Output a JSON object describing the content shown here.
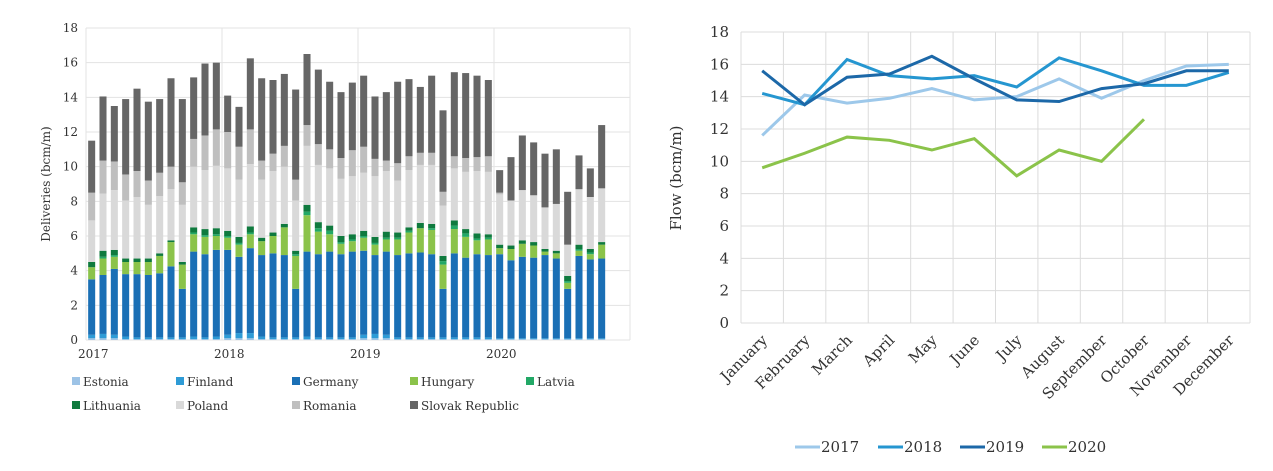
{
  "chart_data": [
    {
      "type": "bar",
      "stacked": true,
      "title": "",
      "xlabel": "",
      "ylabel": "Deliveries (bcm/m)",
      "ylim": [
        0,
        18
      ],
      "yticks": [
        0,
        2,
        4,
        6,
        8,
        10,
        12,
        14,
        16,
        18
      ],
      "xtick_labels": [
        "2017",
        "2018",
        "2019",
        "2020"
      ],
      "grid": true,
      "legend_position": "bottom",
      "categories": [
        "2017-01",
        "2017-02",
        "2017-03",
        "2017-04",
        "2017-05",
        "2017-06",
        "2017-07",
        "2017-08",
        "2017-09",
        "2017-10",
        "2017-11",
        "2017-12",
        "2018-01",
        "2018-02",
        "2018-03",
        "2018-04",
        "2018-05",
        "2018-06",
        "2018-07",
        "2018-08",
        "2018-09",
        "2018-10",
        "2018-11",
        "2018-12",
        "2019-01",
        "2019-02",
        "2019-03",
        "2019-04",
        "2019-05",
        "2019-06",
        "2019-07",
        "2019-08",
        "2019-09",
        "2019-10",
        "2019-11",
        "2019-12",
        "2020-01",
        "2020-02",
        "2020-03",
        "2020-04",
        "2020-05",
        "2020-06",
        "2020-07",
        "2020-08",
        "2020-09",
        "2020-10"
      ],
      "series": [
        {
          "name": "Estonia",
          "color": "#9dc3e6",
          "values": [
            0.1,
            0.1,
            0.1,
            0.05,
            0.05,
            0.05,
            0.05,
            0.05,
            0.05,
            0.05,
            0.05,
            0.05,
            0.1,
            0.1,
            0.1,
            0.05,
            0.05,
            0.05,
            0.05,
            0.05,
            0.05,
            0.05,
            0.05,
            0.05,
            0.1,
            0.1,
            0.1,
            0.05,
            0.05,
            0.05,
            0.05,
            0.05,
            0.05,
            0.05,
            0.05,
            0.05,
            0.05,
            0.05,
            0.05,
            0.05,
            0.05,
            0.05,
            0.05,
            0.05,
            0.05,
            0.05
          ]
        },
        {
          "name": "Finland",
          "color": "#2e9bd6",
          "values": [
            0.2,
            0.25,
            0.2,
            0.15,
            0.1,
            0.1,
            0.1,
            0.1,
            0.1,
            0.15,
            0.1,
            0.15,
            0.2,
            0.3,
            0.3,
            0.15,
            0.1,
            0.1,
            0.1,
            0.15,
            0.1,
            0.1,
            0.1,
            0.1,
            0.2,
            0.25,
            0.2,
            0.1,
            0.1,
            0.1,
            0.1,
            0.1,
            0.1,
            0.1,
            0.1,
            0.1,
            0.05,
            0.05,
            0.05,
            0.05,
            0.05,
            0.05,
            0.05,
            0.05,
            0.05,
            0.05
          ]
        },
        {
          "name": "Germany",
          "color": "#1a6fb5",
          "values": [
            3.2,
            3.4,
            3.8,
            3.6,
            3.65,
            3.6,
            3.7,
            4.1,
            2.8,
            4.9,
            4.8,
            5.0,
            4.9,
            4.4,
            4.9,
            4.7,
            4.85,
            4.75,
            2.8,
            4.9,
            4.8,
            4.95,
            4.8,
            4.95,
            4.85,
            4.55,
            4.8,
            4.75,
            4.85,
            4.9,
            4.8,
            2.8,
            4.85,
            4.6,
            4.8,
            4.75,
            4.85,
            4.5,
            4.7,
            4.65,
            4.8,
            4.6,
            2.85,
            4.75,
            4.55,
            4.6
          ]
        },
        {
          "name": "Hungary",
          "color": "#8bc34a",
          "values": [
            0.7,
            0.95,
            0.7,
            0.7,
            0.7,
            0.75,
            1.0,
            1.4,
            1.4,
            1.0,
            1.0,
            0.8,
            0.7,
            0.7,
            0.8,
            0.8,
            1.0,
            1.6,
            1.9,
            2.1,
            1.3,
            1.0,
            0.6,
            0.6,
            0.75,
            0.6,
            0.7,
            0.9,
            1.2,
            1.4,
            1.4,
            1.4,
            1.4,
            1.2,
            0.8,
            0.9,
            0.35,
            0.65,
            0.75,
            0.7,
            0.2,
            0.3,
            0.35,
            0.3,
            0.3,
            0.8
          ]
        },
        {
          "name": "Latvia",
          "color": "#22a866",
          "values": [
            0,
            0.1,
            0.1,
            0,
            0,
            0,
            0,
            0,
            0,
            0.1,
            0.1,
            0.1,
            0.1,
            0.1,
            0.1,
            0,
            0,
            0,
            0.1,
            0.2,
            0.2,
            0.2,
            0.1,
            0.1,
            0.1,
            0.1,
            0.1,
            0.1,
            0.1,
            0,
            0.1,
            0.2,
            0.2,
            0.2,
            0.1,
            0.1,
            0,
            0,
            0,
            0,
            0,
            0,
            0.1,
            0.1,
            0.1,
            0
          ]
        },
        {
          "name": "Lithuania",
          "color": "#0f7a3e",
          "values": [
            0.3,
            0.35,
            0.3,
            0.2,
            0.2,
            0.2,
            0.15,
            0.1,
            0.15,
            0.3,
            0.35,
            0.35,
            0.3,
            0.35,
            0.35,
            0.2,
            0.2,
            0.2,
            0.2,
            0.4,
            0.35,
            0.3,
            0.35,
            0.3,
            0.3,
            0.35,
            0.35,
            0.3,
            0.2,
            0.3,
            0.25,
            0.3,
            0.3,
            0.25,
            0.3,
            0.2,
            0.2,
            0.2,
            0.2,
            0.2,
            0.15,
            0.15,
            0.3,
            0.25,
            0.2,
            0.15
          ]
        },
        {
          "name": "Poland",
          "color": "#d9d9d9",
          "values": [
            2.4,
            3.3,
            3.45,
            3.35,
            3.55,
            3.1,
            3.3,
            2.95,
            3.3,
            3.5,
            3.4,
            3.6,
            3.6,
            3.3,
            3.6,
            3.35,
            3.55,
            3.3,
            2.9,
            3.4,
            3.3,
            3.3,
            3.3,
            3.35,
            3.35,
            3.5,
            3.5,
            3.0,
            3.3,
            3.35,
            3.4,
            2.9,
            3.0,
            3.3,
            3.6,
            3.6,
            2.9,
            2.6,
            2.9,
            2.7,
            2.4,
            2.7,
            1.8,
            3.2,
            3.0,
            3.1
          ]
        },
        {
          "name": "Romania",
          "color": "#bfbfbf",
          "values": [
            1.6,
            1.9,
            1.65,
            1.5,
            1.5,
            1.4,
            1.35,
            1.3,
            1.3,
            1.6,
            2.0,
            2.1,
            2.1,
            1.9,
            2.0,
            1.1,
            1.0,
            1.2,
            1.2,
            1.2,
            1.2,
            1.1,
            1.2,
            1.5,
            1.5,
            1.0,
            0.6,
            1.0,
            0.8,
            0.7,
            0.7,
            0.8,
            0.7,
            0.8,
            0.8,
            0.9,
            0.1,
            0,
            0,
            0,
            0,
            0,
            0,
            0,
            0,
            0
          ]
        },
        {
          "name": "Slovak Republic",
          "color": "#666666",
          "values": [
            3.0,
            3.7,
            3.2,
            4.35,
            4.75,
            4.55,
            4.25,
            5.1,
            4.8,
            3.55,
            4.15,
            3.85,
            2.1,
            2.3,
            4.1,
            4.75,
            4.25,
            4.15,
            5.2,
            4.1,
            4.3,
            3.9,
            3.8,
            3.9,
            4.1,
            3.6,
            3.95,
            4.7,
            4.45,
            3.8,
            4.45,
            4.7,
            4.85,
            4.9,
            4.7,
            4.4,
            1.3,
            2.5,
            3.15,
            3.05,
            3.1,
            3.15,
            3.05,
            1.95,
            1.65,
            3.65
          ]
        }
      ]
    },
    {
      "type": "line",
      "title": "",
      "xlabel": "",
      "ylabel": "Flow (bcm/m)",
      "ylim": [
        0,
        18
      ],
      "yticks": [
        0,
        2,
        4,
        6,
        8,
        10,
        12,
        14,
        16,
        18
      ],
      "grid": true,
      "legend_position": "bottom",
      "categories": [
        "January",
        "February",
        "March",
        "April",
        "May",
        "June",
        "July",
        "August",
        "September",
        "October",
        "November",
        "December"
      ],
      "series": [
        {
          "name": "2017",
          "color": "#9dc8ea",
          "values": [
            11.6,
            14.1,
            13.6,
            13.9,
            14.5,
            13.8,
            14.0,
            15.1,
            13.9,
            15.0,
            15.9,
            16.0
          ]
        },
        {
          "name": "2018",
          "color": "#2596d0",
          "values": [
            14.2,
            13.5,
            16.3,
            15.3,
            15.1,
            15.3,
            14.6,
            16.4,
            15.6,
            14.7,
            14.7,
            15.5
          ]
        },
        {
          "name": "2019",
          "color": "#1c68a8",
          "values": [
            15.6,
            13.5,
            15.2,
            15.4,
            16.5,
            15.1,
            13.8,
            13.7,
            14.5,
            14.8,
            15.6,
            15.6
          ]
        },
        {
          "name": "2020",
          "color": "#8bc34a",
          "values": [
            9.6,
            10.5,
            11.5,
            11.3,
            10.7,
            11.4,
            9.1,
            10.7,
            10.0,
            12.6,
            null,
            null
          ]
        }
      ]
    }
  ]
}
